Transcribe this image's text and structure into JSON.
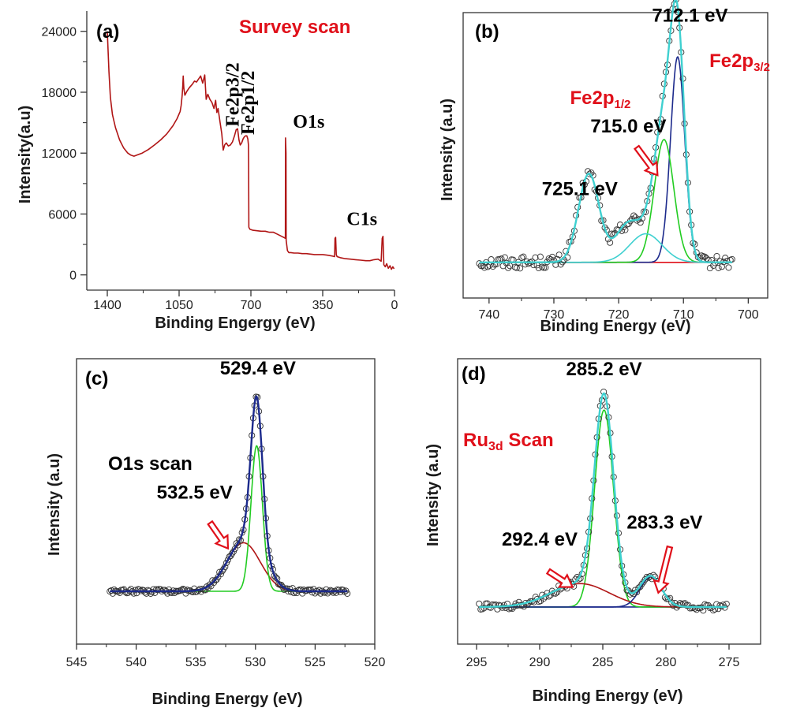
{
  "colors": {
    "red": "#e0101a",
    "dark_red": "#b01515",
    "navy": "#1c2a8c",
    "green": "#22cc22",
    "cyan": "#3fd0d0",
    "blue": "#1565d8",
    "marker": "#333333"
  },
  "chart_data": [
    {
      "id": "a",
      "type": "line",
      "panel_label": "(a)",
      "title": "Survey scan",
      "xlabel": "Binding Engergy (eV)",
      "ylabel": "Intensity(a.u)",
      "xlim": [
        1500,
        0
      ],
      "ylim": [
        -1500,
        26000
      ],
      "xticks": [
        1400,
        1050,
        700,
        350,
        0
      ],
      "yticks": [
        0,
        6000,
        12000,
        18000,
        24000
      ],
      "annotations": [
        {
          "text": "Fe2p3/2",
          "x": 760,
          "y": 14600,
          "rotate": -90
        },
        {
          "text": "Fe2p1/2",
          "x": 685,
          "y": 13800,
          "rotate": -90
        },
        {
          "text": "O1s",
          "x": 495,
          "y": 14500,
          "rotate": 0
        },
        {
          "text": "C1s",
          "x": 233,
          "y": 4900,
          "rotate": 0
        }
      ],
      "series": [
        {
          "points": [
            [
              1400,
              24000
            ],
            [
              1392,
              20000
            ],
            [
              1385,
              17500
            ],
            [
              1375,
              15800
            ],
            [
              1360,
              14500
            ],
            [
              1340,
              13300
            ],
            [
              1320,
              12500
            ],
            [
              1300,
              12000
            ],
            [
              1285,
              11800
            ],
            [
              1270,
              11700
            ],
            [
              1250,
              11850
            ],
            [
              1230,
              12000
            ],
            [
              1200,
              12350
            ],
            [
              1170,
              12800
            ],
            [
              1140,
              13300
            ],
            [
              1110,
              13900
            ],
            [
              1080,
              14700
            ],
            [
              1060,
              15400
            ],
            [
              1045,
              16100
            ],
            [
              1040,
              16700
            ],
            [
              1035,
              17700
            ],
            [
              1032,
              18700
            ],
            [
              1030,
              19600
            ],
            [
              1027,
              18400
            ],
            [
              1022,
              17700
            ],
            [
              1012,
              18100
            ],
            [
              1000,
              18450
            ],
            [
              985,
              18800
            ],
            [
              975,
              19100
            ],
            [
              965,
              19000
            ],
            [
              955,
              19300
            ],
            [
              945,
              19600
            ],
            [
              935,
              18900
            ],
            [
              925,
              19700
            ],
            [
              918,
              17300
            ],
            [
              910,
              17800
            ],
            [
              900,
              17300
            ],
            [
              890,
              17000
            ],
            [
              880,
              16400
            ],
            [
              872,
              17200
            ],
            [
              866,
              16000
            ],
            [
              860,
              16400
            ],
            [
              850,
              15000
            ],
            [
              842,
              13900
            ],
            [
              835,
              12300
            ],
            [
              828,
              12800
            ],
            [
              820,
              13000
            ],
            [
              810,
              12700
            ],
            [
              800,
              12800
            ],
            [
              790,
              13100
            ],
            [
              780,
              13700
            ],
            [
              772,
              14300
            ],
            [
              765,
              14400
            ],
            [
              758,
              13300
            ],
            [
              752,
              12800
            ],
            [
              745,
              13000
            ],
            [
              738,
              13400
            ],
            [
              732,
              13600
            ],
            [
              726,
              13700
            ],
            [
              720,
              13700
            ],
            [
              715,
              13400
            ],
            [
              712,
              12800
            ],
            [
              711,
              11000
            ],
            [
              710,
              4700
            ],
            [
              705,
              4500
            ],
            [
              690,
              4400
            ],
            [
              670,
              4350
            ],
            [
              650,
              4300
            ],
            [
              630,
              4300
            ],
            [
              610,
              4200
            ],
            [
              590,
              4200
            ],
            [
              570,
              4000
            ],
            [
              550,
              3800
            ],
            [
              540,
              3700
            ],
            [
              532,
              3600
            ],
            [
              531,
              13500
            ],
            [
              529,
              12000
            ],
            [
              528,
              3400
            ],
            [
              522,
              2400
            ],
            [
              515,
              2200
            ],
            [
              505,
              2200
            ],
            [
              490,
              2150
            ],
            [
              470,
              2150
            ],
            [
              450,
              2100
            ],
            [
              430,
              2100
            ],
            [
              410,
              2050
            ],
            [
              390,
              2000
            ],
            [
              370,
              2000
            ],
            [
              350,
              2000
            ],
            [
              330,
              1950
            ],
            [
              315,
              1900
            ],
            [
              302,
              1850
            ],
            [
              292,
              1800
            ],
            [
              290,
              3600
            ],
            [
              287,
              3700
            ],
            [
              284,
              2000
            ],
            [
              280,
              1800
            ],
            [
              265,
              1700
            ],
            [
              240,
              1600
            ],
            [
              215,
              1550
            ],
            [
              190,
              1500
            ],
            [
              165,
              1450
            ],
            [
              140,
              1400
            ],
            [
              120,
              1400
            ],
            [
              100,
              1500
            ],
            [
              80,
              1550
            ],
            [
              65,
              1350
            ],
            [
              60,
              3600
            ],
            [
              56,
              3800
            ],
            [
              52,
              1000
            ],
            [
              45,
              800
            ],
            [
              38,
              1100
            ],
            [
              30,
              650
            ],
            [
              22,
              900
            ],
            [
              15,
              550
            ],
            [
              8,
              800
            ],
            [
              2,
              600
            ]
          ]
        }
      ]
    },
    {
      "id": "b",
      "type": "scatter",
      "panel_label": "(b)",
      "title": "",
      "xlabel": "Binding Energy (eV)",
      "ylabel": "Intensity (a.u)",
      "xlim": [
        744,
        697
      ],
      "ylim": [
        0,
        1
      ],
      "xticks": [
        740,
        730,
        720,
        710,
        700
      ],
      "annotations": [
        {
          "text": "712.1 eV",
          "x": 709.0,
          "y": 0.968
        },
        {
          "text": "715.0 eV",
          "x": 718.5,
          "y": 0.58
        },
        {
          "text": "725.1 eV",
          "x": 726.0,
          "y": 0.36
        },
        {
          "text": "Fe2p",
          "sub": "1/2",
          "x": 727.5,
          "y": 0.68
        },
        {
          "text": "Fe2p",
          "sub": "3/2",
          "x": 706.0,
          "y": 0.81
        }
      ],
      "arrow": {
        "from": [
          717.2,
          0.528
        ],
        "to": [
          714.0,
          0.43
        ]
      },
      "baseline": 0.125,
      "components": [
        {
          "name": "baseline",
          "color": "red",
          "peaks": []
        },
        {
          "name": "peak-710.9",
          "color": "navy",
          "peaks": [
            [
              710.9,
              0.72,
              1.1
            ]
          ]
        },
        {
          "name": "peak-713.0",
          "color": "green",
          "peaks": [
            [
              713.0,
              0.43,
              1.5
            ]
          ]
        },
        {
          "name": "peak-715.8",
          "color": "cyan",
          "peaks": [
            [
              715.8,
              0.1,
              2.5
            ]
          ]
        }
      ],
      "envelope": {
        "color": "cyan",
        "peaks": [
          [
            724.6,
            0.31,
            1.6
          ],
          [
            719.0,
            0.09,
            1.8
          ],
          [
            715.8,
            0.1,
            2.5
          ],
          [
            713.0,
            0.43,
            1.5
          ],
          [
            710.9,
            0.72,
            1.1
          ]
        ]
      },
      "points_range": [
        741.5,
        702.5
      ],
      "points_count": 150,
      "noise": 0.022
    },
    {
      "id": "c",
      "type": "scatter",
      "panel_label": "(c)",
      "title": "O1s scan",
      "xlabel": "Binding Energy (eV)",
      "ylabel": "Intensity (a.u)",
      "xlim": [
        545,
        520
      ],
      "ylim": [
        0,
        1
      ],
      "xticks": [
        545,
        540,
        535,
        530,
        525,
        520
      ],
      "annotations": [
        {
          "text": "529.4 eV",
          "x": 529.8,
          "y": 0.945
        },
        {
          "text": "532.5 eV",
          "x": 535.1,
          "y": 0.51
        }
      ],
      "arrow": {
        "from": [
          533.8,
          0.425
        ],
        "to": [
          532.3,
          0.335
        ]
      },
      "baseline": 0.185,
      "components": [
        {
          "name": "peak-531.0",
          "color": "dark_red",
          "peaks": [
            [
              531.0,
              0.17,
              1.4
            ]
          ]
        },
        {
          "name": "peak-529.9",
          "color": "green",
          "peaks": [
            [
              529.9,
              0.51,
              0.48
            ]
          ]
        }
      ],
      "envelope": {
        "color": "navy",
        "peaks": [
          [
            531.0,
            0.17,
            1.4
          ],
          [
            529.9,
            0.51,
            0.48
          ],
          [
            529.6,
            0.05,
            0.9
          ]
        ]
      },
      "points_range": [
        542.2,
        522.3
      ],
      "points_count": 170,
      "noise": 0.008
    },
    {
      "id": "d",
      "type": "scatter",
      "panel_label": "(d)",
      "title": "Ru3d Scan",
      "xlabel": "Binding Energy (eV)",
      "ylabel": "Intensity (a.u)",
      "xlim": [
        296.5,
        272.5
      ],
      "ylim": [
        0,
        1
      ],
      "xticks": [
        295,
        290,
        285,
        280,
        275
      ],
      "annotations": [
        {
          "text": "285.2 eV",
          "x": 284.9,
          "y": 0.942
        },
        {
          "text": "292.4 eV",
          "x": 290.0,
          "y": 0.345
        },
        {
          "text": "283.3 eV",
          "x": 280.1,
          "y": 0.405
        }
      ],
      "arrows": [
        {
          "from": [
            289.3,
            0.255
          ],
          "to": [
            287.4,
            0.2
          ]
        },
        {
          "from": [
            279.7,
            0.34
          ],
          "to": [
            280.6,
            0.18
          ]
        }
      ],
      "baseline": 0.13,
      "components": [
        {
          "name": "baseline",
          "color": "navy",
          "peaks": []
        },
        {
          "name": "peak-284.9",
          "color": "green",
          "peaks": [
            [
              284.9,
              0.69,
              0.75
            ]
          ]
        },
        {
          "name": "peak-286.8",
          "color": "dark_red",
          "peaks": [
            [
              286.8,
              0.082,
              2.3
            ]
          ]
        },
        {
          "name": "peak-281.2",
          "color": "navy",
          "peaks": [
            [
              281.2,
              0.105,
              0.85
            ]
          ]
        }
      ],
      "envelope": {
        "color": "cyan",
        "peaks": [
          [
            284.9,
            0.69,
            0.75
          ],
          [
            286.8,
            0.082,
            2.3
          ],
          [
            281.2,
            0.105,
            0.85
          ]
        ]
      },
      "points_range": [
        294.8,
        275.2
      ],
      "points_count": 150,
      "noise": 0.012
    }
  ]
}
